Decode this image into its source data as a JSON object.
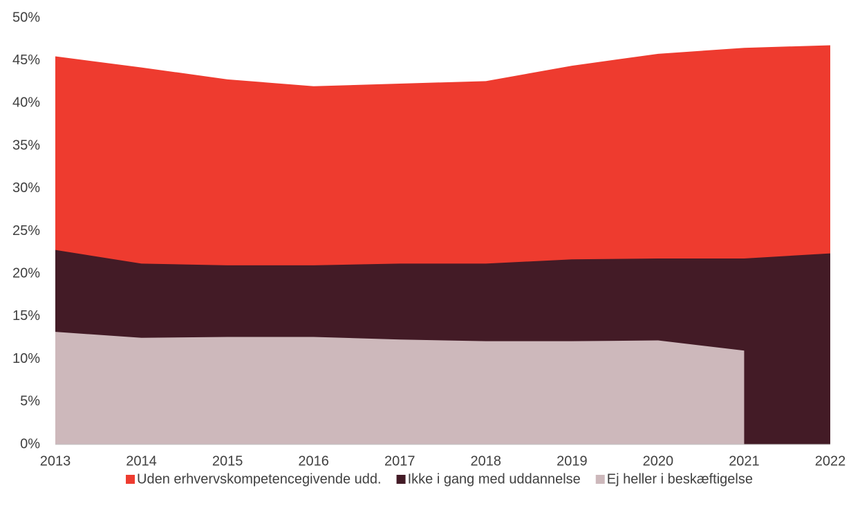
{
  "chart_data": {
    "type": "area",
    "x": [
      2013,
      2014,
      2015,
      2016,
      2017,
      2018,
      2019,
      2020,
      2021,
      2022
    ],
    "xlim": [
      2013,
      2022
    ],
    "xticks": [
      2013,
      2014,
      2015,
      2016,
      2017,
      2018,
      2019,
      2020,
      2021,
      2022
    ],
    "ylim": [
      0,
      50
    ],
    "yticks": [
      {
        "value": 0,
        "label": "0%"
      },
      {
        "value": 5,
        "label": "5%"
      },
      {
        "value": 10,
        "label": "10%"
      },
      {
        "value": 15,
        "label": "15%"
      },
      {
        "value": 20,
        "label": "20%"
      },
      {
        "value": 25,
        "label": "25%"
      },
      {
        "value": 30,
        "label": "30%"
      },
      {
        "value": 35,
        "label": "35%"
      },
      {
        "value": 40,
        "label": "40%"
      },
      {
        "value": 45,
        "label": "45%"
      },
      {
        "value": 50,
        "label": "50%"
      }
    ],
    "grid": false,
    "legend": "bottom",
    "series": [
      {
        "name": "Uden erhvervskompetencegivende udd.",
        "color": "#ee3b2f",
        "values": [
          45.5,
          44.2,
          42.8,
          42.0,
          42.3,
          42.6,
          44.4,
          45.8,
          46.5,
          46.8
        ]
      },
      {
        "name": "Ikke i gang med uddannelse",
        "color": "#431b26",
        "values": [
          22.8,
          21.2,
          21.0,
          21.0,
          21.2,
          21.2,
          21.7,
          21.8,
          21.8,
          22.4
        ]
      },
      {
        "name": "Ej heller i beskæftigelse",
        "color": "#cdb8bb",
        "values": [
          13.2,
          12.5,
          12.6,
          12.6,
          12.3,
          12.1,
          12.1,
          12.2,
          11.0,
          null
        ]
      }
    ]
  }
}
